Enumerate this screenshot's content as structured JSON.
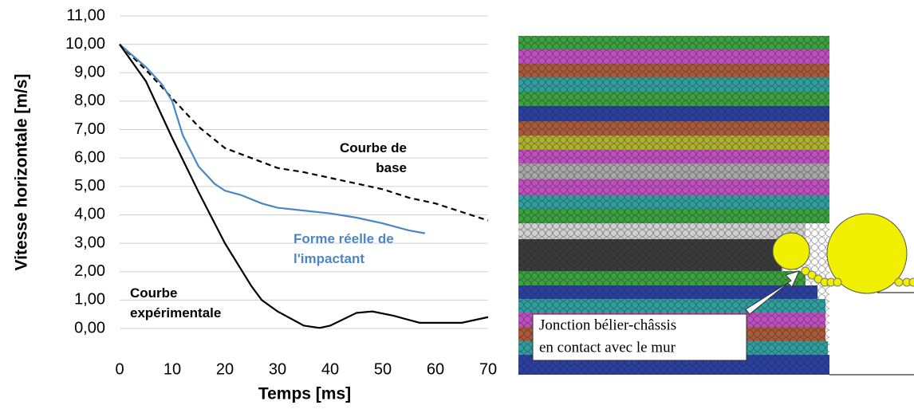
{
  "chart_data": {
    "type": "line",
    "ylabel": "Vitesse horizontale [m/s]",
    "xlabel": "Temps [ms]",
    "xlim": [
      0,
      70
    ],
    "xticks": [
      0,
      10,
      20,
      30,
      40,
      50,
      60,
      70
    ],
    "ylim": [
      0,
      11
    ],
    "yticks": [
      {
        "value": 0,
        "label": "0,00"
      },
      {
        "value": 1,
        "label": "1,00"
      },
      {
        "value": 2,
        "label": "2,00"
      },
      {
        "value": 3,
        "label": "3,00"
      },
      {
        "value": 4,
        "label": "4,00"
      },
      {
        "value": 5,
        "label": "5,00"
      },
      {
        "value": 6,
        "label": "6,00"
      },
      {
        "value": 7,
        "label": "7,00"
      },
      {
        "value": 8,
        "label": "8,00"
      },
      {
        "value": 9,
        "label": "9,00"
      },
      {
        "value": 10,
        "label": "10,00"
      },
      {
        "value": 11,
        "label": "11,00"
      }
    ],
    "grid": true,
    "series": [
      {
        "name": "Courbe de base",
        "color": "#000000",
        "line_style": "dashed",
        "x": [
          0,
          5,
          10,
          15,
          20,
          25,
          30,
          35,
          40,
          45,
          50,
          55,
          60,
          65,
          70
        ],
        "values": [
          10,
          9.1,
          8.1,
          7.1,
          6.35,
          6.0,
          5.65,
          5.5,
          5.3,
          5.1,
          4.9,
          4.6,
          4.4,
          4.1,
          3.8
        ]
      },
      {
        "name": "Forme réelle de l'impactant",
        "color": "#4a86c5",
        "line_style": "solid",
        "x": [
          0,
          5,
          8,
          10,
          12,
          15,
          18,
          20,
          23,
          27,
          30,
          40,
          45,
          50,
          55,
          58
        ],
        "values": [
          10,
          9.2,
          8.6,
          8.0,
          6.8,
          5.7,
          5.1,
          4.85,
          4.7,
          4.4,
          4.25,
          4.05,
          3.9,
          3.7,
          3.45,
          3.35
        ]
      },
      {
        "name": "Courbe expérimentale",
        "color": "#000000",
        "line_style": "solid",
        "x": [
          0,
          5,
          10,
          15,
          20,
          25,
          27,
          30,
          35,
          38,
          40,
          45,
          48,
          52,
          57,
          62,
          65,
          70
        ],
        "values": [
          10,
          8.7,
          6.7,
          4.8,
          3.0,
          1.5,
          1.0,
          0.6,
          0.1,
          0.02,
          0.1,
          0.55,
          0.6,
          0.45,
          0.2,
          0.2,
          0.2,
          0.4
        ]
      }
    ]
  },
  "figure": {
    "annotation_lines": [
      "Jonction bélier-châssis",
      "en contact avec le mur"
    ]
  }
}
